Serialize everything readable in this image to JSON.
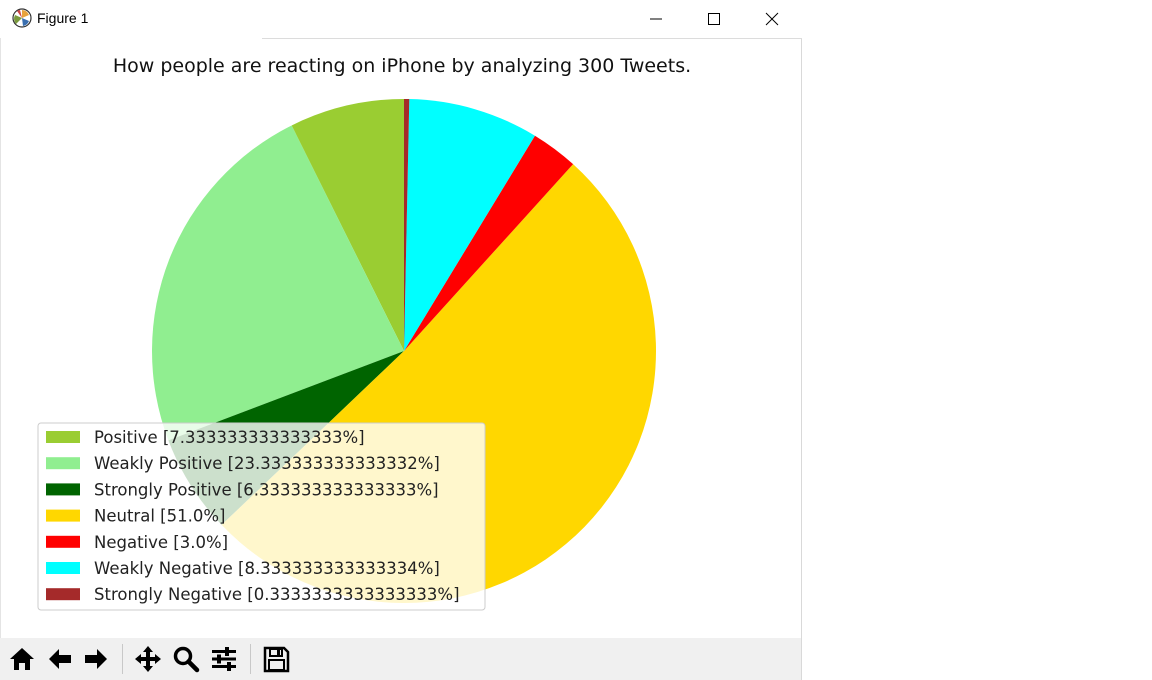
{
  "window": {
    "title": "Figure 1",
    "icons": [
      "matplotlib-logo-icon",
      "minimize-icon",
      "maximize-icon",
      "close-icon"
    ]
  },
  "toolbar": {
    "buttons": [
      "home-icon",
      "back-arrow-icon",
      "forward-arrow-icon",
      "pan-icon",
      "zoom-icon",
      "configure-subplots-icon",
      "save-icon"
    ]
  },
  "chart_data": {
    "type": "pie",
    "title": "How people are reacting on iPhone by analyzing 300 Tweets.",
    "start_angle_deg": 90,
    "direction": "counterclockwise",
    "legend_placement": "lower-left",
    "slices": [
      {
        "label": "Positive [7.333333333333333%]",
        "value": 7.333333333333333,
        "color": "#9acd32"
      },
      {
        "label": "Weakly Positive [23.333333333333332%]",
        "value": 23.333333333333332,
        "color": "#90ee90"
      },
      {
        "label": "Strongly Positive [6.333333333333333%]",
        "value": 6.333333333333333,
        "color": "#006400"
      },
      {
        "label": "Neutral [51.0%]",
        "value": 51.0,
        "color": "#ffd700"
      },
      {
        "label": "Negative [3.0%]",
        "value": 3.0,
        "color": "#ff0000"
      },
      {
        "label": "Weakly Negative [8.333333333333334%]",
        "value": 8.333333333333334,
        "color": "#00ffff"
      },
      {
        "label": "Strongly Negative [0.3333333333333333%]",
        "value": 0.3333333333333333,
        "color": "#a52a2a"
      }
    ]
  }
}
